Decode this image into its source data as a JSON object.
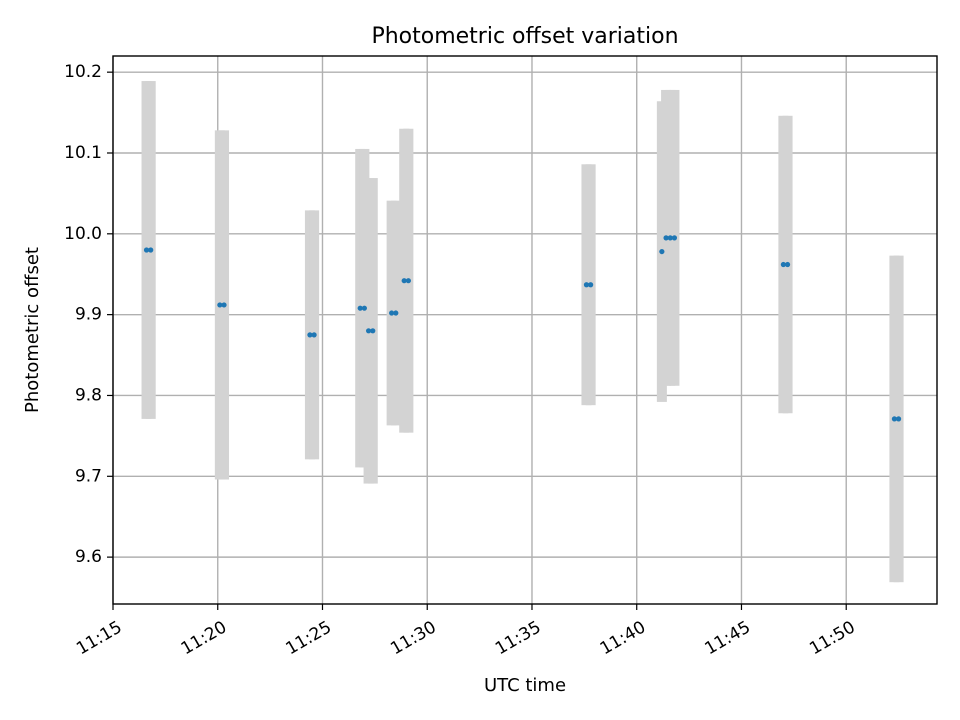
{
  "chart_data": {
    "type": "scatter",
    "title": "Photometric offset variation",
    "xlabel": "UTC time",
    "ylabel": "Photometric offset",
    "x_ticks": [
      "11:15",
      "11:20",
      "11:25",
      "11:30",
      "11:35",
      "11:40",
      "11:45",
      "11:50"
    ],
    "y_ticks": [
      "9.6",
      "9.7",
      "9.8",
      "9.9",
      "10.0",
      "10.1",
      "10.2"
    ],
    "xlim": [
      "11:15:00",
      "11:54:20"
    ],
    "ylim": [
      9.542,
      10.22
    ],
    "grid": true,
    "colors": {
      "points": "#1f77b4",
      "error_bars": "#d3d3d3"
    },
    "series": [
      {
        "points": [
          {
            "t": "11:16:36",
            "y": 9.98,
            "err": 0.209
          },
          {
            "t": "11:16:48",
            "y": 9.98,
            "err": 0.209
          },
          {
            "t": "11:20:06",
            "y": 9.912,
            "err": 0.216
          },
          {
            "t": "11:20:18",
            "y": 9.912,
            "err": 0.216
          },
          {
            "t": "11:24:24",
            "y": 9.875,
            "err": 0.154
          },
          {
            "t": "11:24:36",
            "y": 9.875,
            "err": 0.154
          },
          {
            "t": "11:26:48",
            "y": 9.908,
            "err": 0.197
          },
          {
            "t": "11:27:00",
            "y": 9.908,
            "err": 0.197
          },
          {
            "t": "11:27:12",
            "y": 9.88,
            "err": 0.189
          },
          {
            "t": "11:27:24",
            "y": 9.88,
            "err": 0.189
          },
          {
            "t": "11:28:18",
            "y": 9.902,
            "err": 0.139
          },
          {
            "t": "11:28:30",
            "y": 9.902,
            "err": 0.139
          },
          {
            "t": "11:28:54",
            "y": 9.942,
            "err": 0.188
          },
          {
            "t": "11:29:06",
            "y": 9.942,
            "err": 0.188
          },
          {
            "t": "11:37:36",
            "y": 9.937,
            "err": 0.149
          },
          {
            "t": "11:37:48",
            "y": 9.937,
            "err": 0.149
          },
          {
            "t": "11:41:12",
            "y": 9.978,
            "err": 0.186
          },
          {
            "t": "11:41:24",
            "y": 9.995,
            "err": 0.183
          },
          {
            "t": "11:41:36",
            "y": 9.995,
            "err": 0.183
          },
          {
            "t": "11:41:48",
            "y": 9.995,
            "err": 0.183
          },
          {
            "t": "11:47:00",
            "y": 9.962,
            "err": 0.184
          },
          {
            "t": "11:47:12",
            "y": 9.962,
            "err": 0.184
          },
          {
            "t": "11:52:18",
            "y": 9.771,
            "err": 0.202
          },
          {
            "t": "11:52:30",
            "y": 9.771,
            "err": 0.202
          }
        ]
      }
    ]
  }
}
